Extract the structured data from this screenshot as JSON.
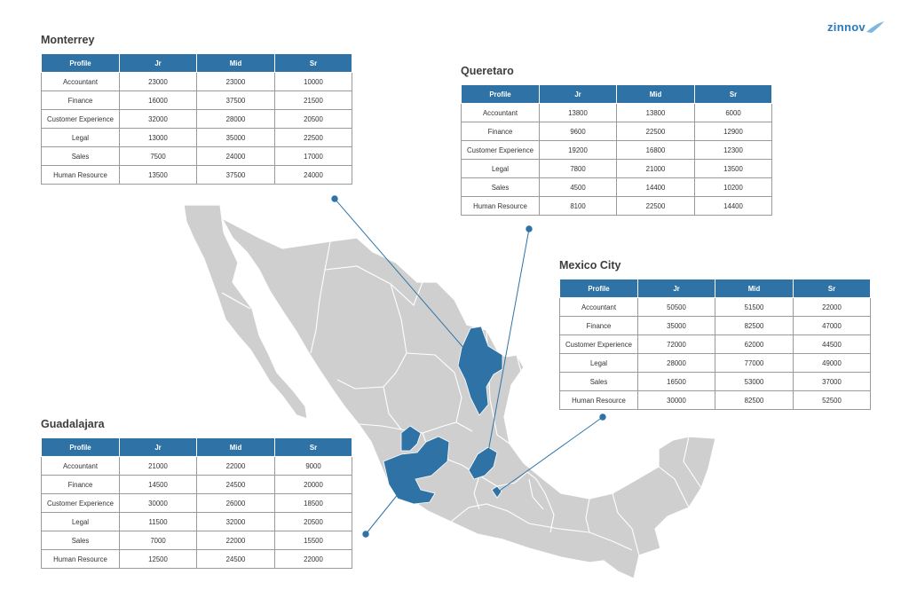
{
  "brand": {
    "logo_text": "zinnov",
    "accent": "#2f73a6"
  },
  "columns": [
    "Profile",
    "Jr",
    "Mid",
    "Sr"
  ],
  "tables": {
    "monterrey": {
      "title": "Monterrey",
      "rows": [
        [
          "Accountant",
          "23000",
          "23000",
          "10000"
        ],
        [
          "Finance",
          "16000",
          "37500",
          "21500"
        ],
        [
          "Customer Experience",
          "32000",
          "28000",
          "20500"
        ],
        [
          "Legal",
          "13000",
          "35000",
          "22500"
        ],
        [
          "Sales",
          "7500",
          "24000",
          "17000"
        ],
        [
          "Human Resource",
          "13500",
          "37500",
          "24000"
        ]
      ]
    },
    "queretaro": {
      "title": "Queretaro",
      "rows": [
        [
          "Accountant",
          "13800",
          "13800",
          "6000"
        ],
        [
          "Finance",
          "9600",
          "22500",
          "12900"
        ],
        [
          "Customer Experience",
          "19200",
          "16800",
          "12300"
        ],
        [
          "Legal",
          "7800",
          "21000",
          "13500"
        ],
        [
          "Sales",
          "4500",
          "14400",
          "10200"
        ],
        [
          "Human Resource",
          "8100",
          "22500",
          "14400"
        ]
      ]
    },
    "mexico_city": {
      "title": "Mexico City",
      "rows": [
        [
          "Accountant",
          "50500",
          "51500",
          "22000"
        ],
        [
          "Finance",
          "35000",
          "82500",
          "47000"
        ],
        [
          "Customer Experience",
          "72000",
          "62000",
          "44500"
        ],
        [
          "Legal",
          "28000",
          "77000",
          "49000"
        ],
        [
          "Sales",
          "16500",
          "53000",
          "37000"
        ],
        [
          "Human Resource",
          "30000",
          "82500",
          "52500"
        ]
      ]
    },
    "guadalajara": {
      "title": "Guadalajara",
      "rows": [
        [
          "Accountant",
          "21000",
          "22000",
          "9000"
        ],
        [
          "Finance",
          "14500",
          "24500",
          "20000"
        ],
        [
          "Customer Experience",
          "30000",
          "26000",
          "18500"
        ],
        [
          "Legal",
          "11500",
          "32000",
          "20500"
        ],
        [
          "Sales",
          "7000",
          "22000",
          "15500"
        ],
        [
          "Human Resource",
          "12500",
          "24500",
          "22000"
        ]
      ]
    }
  },
  "map": {
    "base_color": "#cfcfcf",
    "border_color": "#ffffff",
    "highlight_color": "#2f73a6",
    "leader_color": "#2f73a6"
  }
}
